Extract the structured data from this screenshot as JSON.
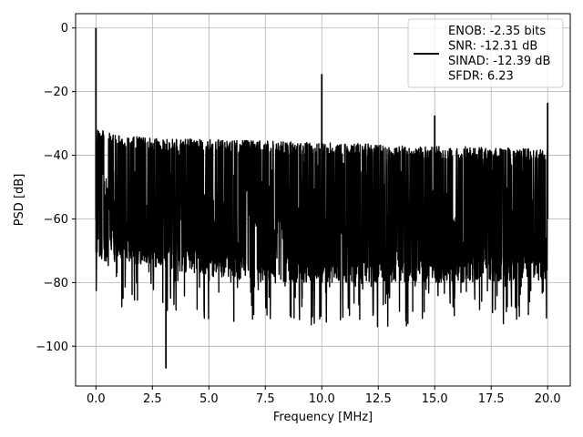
{
  "chart_data": {
    "type": "line",
    "title": "",
    "xlabel": "Frequency [MHz]",
    "ylabel": "PSD [dB]",
    "xlim": [
      -0.9,
      21.0
    ],
    "ylim": [
      -112.5,
      4.5
    ],
    "grid": true,
    "x_ticks": [
      0.0,
      2.5,
      5.0,
      7.5,
      10.0,
      12.5,
      15.0,
      17.5,
      20.0
    ],
    "x_tick_labels": [
      "0.0",
      "2.5",
      "5.0",
      "7.5",
      "10.0",
      "12.5",
      "15.0",
      "17.5",
      "20.0"
    ],
    "y_ticks": [
      0,
      -20,
      -40,
      -60,
      -80,
      -100
    ],
    "y_tick_labels": [
      "0",
      "−20",
      "−40",
      "−60",
      "−80",
      "−100"
    ],
    "legend": {
      "placement": "upper right",
      "entries": [
        "ENOB: -2.35 bits",
        "SNR: -12.31 dB",
        "SINAD: -12.39 dB",
        "SFDR: 6.23"
      ]
    },
    "series": [
      {
        "color": "#000000",
        "noise_band": {
          "x_range": [
            0.0,
            20.0
          ],
          "upper_envelope": [
            [
              0.0,
              -31
            ],
            [
              0.5,
              -33
            ],
            [
              2.5,
              -34.5
            ],
            [
              5.0,
              -35
            ],
            [
              7.5,
              -35.5
            ],
            [
              10.0,
              -36
            ],
            [
              12.5,
              -36.5
            ],
            [
              15.0,
              -37
            ],
            [
              17.5,
              -37.5
            ],
            [
              20.0,
              -38
            ]
          ],
          "lower_envelope": [
            [
              0.0,
              -73
            ],
            [
              2.5,
              -75
            ],
            [
              5.0,
              -78
            ],
            [
              7.5,
              -80
            ],
            [
              10.0,
              -80
            ],
            [
              12.5,
              -80
            ],
            [
              15.0,
              -80
            ],
            [
              17.5,
              -80
            ],
            [
              20.0,
              -78
            ]
          ],
          "min_dip_x": 3.1,
          "min_dip_y": -107
        },
        "peaks": [
          {
            "x": 0.0,
            "y": 0
          },
          {
            "x": 10.0,
            "y": -14.5
          },
          {
            "x": 15.0,
            "y": -27.5
          },
          {
            "x": 20.0,
            "y": -23.5
          }
        ]
      }
    ]
  }
}
